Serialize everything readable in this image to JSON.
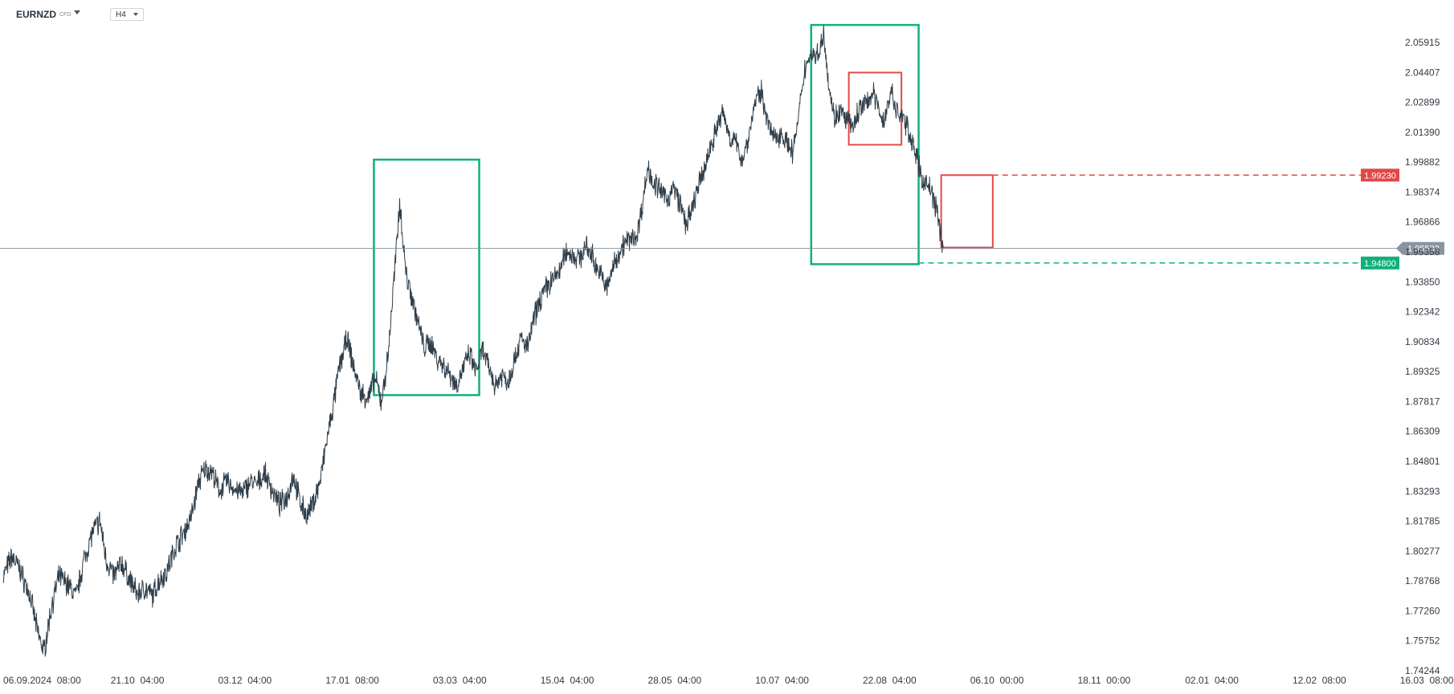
{
  "header": {
    "symbol": "EURNZD",
    "symbol_type": "CFD",
    "timeframe": "H4"
  },
  "chart_data": {
    "type": "line",
    "instrument": "EURNZD",
    "timeframe": "H4",
    "xlabel": "",
    "ylabel": "",
    "ylim": [
      1.74244,
      2.06923
    ],
    "y_ticks": [
      "2.05915",
      "2.04407",
      "2.02899",
      "2.01390",
      "1.99882",
      "1.98374",
      "1.96866",
      "1.95358",
      "1.93850",
      "1.92342",
      "1.90834",
      "1.89325",
      "1.87817",
      "1.86309",
      "1.84801",
      "1.83293",
      "1.81785",
      "1.80277",
      "1.78768",
      "1.77260",
      "1.75752",
      "1.74244"
    ],
    "x_ticks": [
      "06.09.2024  08:00",
      "21.10  04:00",
      "03.12  04:00",
      "17.01  08:00",
      "03.03  04:00",
      "15.04  04:00",
      "28.05  04:00",
      "10.07  04:00",
      "22.08  04:00",
      "06.10  00:00",
      "18.11  00:00",
      "02.01  04:00",
      "12.02  08:00",
      "16.03  08:00"
    ],
    "price_path": [
      [
        0,
        1.79
      ],
      [
        0.8,
        1.8
      ],
      [
        1.5,
        1.794
      ],
      [
        2.5,
        1.78
      ],
      [
        3.2,
        1.762
      ],
      [
        3.8,
        1.752
      ],
      [
        4.5,
        1.775
      ],
      [
        5.2,
        1.79
      ],
      [
        6,
        1.786
      ],
      [
        6.8,
        1.78
      ],
      [
        7.5,
        1.798
      ],
      [
        8.3,
        1.812
      ],
      [
        9,
        1.818
      ],
      [
        9.6,
        1.798
      ],
      [
        10.3,
        1.79
      ],
      [
        11,
        1.797
      ],
      [
        11.8,
        1.788
      ],
      [
        12.5,
        1.781
      ],
      [
        13.2,
        1.784
      ],
      [
        13.9,
        1.78
      ],
      [
        14.5,
        1.788
      ],
      [
        15.2,
        1.792
      ],
      [
        16,
        1.805
      ],
      [
        16.8,
        1.812
      ],
      [
        17.5,
        1.82
      ],
      [
        18.2,
        1.838
      ],
      [
        18.8,
        1.844
      ],
      [
        19.4,
        1.843
      ],
      [
        20.1,
        1.833
      ],
      [
        20.8,
        1.838
      ],
      [
        21.5,
        1.834
      ],
      [
        22.3,
        1.832
      ],
      [
        23,
        1.838
      ],
      [
        23.6,
        1.836
      ],
      [
        24.3,
        1.842
      ],
      [
        25,
        1.834
      ],
      [
        25.7,
        1.826
      ],
      [
        26.4,
        1.83
      ],
      [
        27,
        1.841
      ],
      [
        27.6,
        1.828
      ],
      [
        28.3,
        1.82
      ],
      [
        28.9,
        1.828
      ],
      [
        29.5,
        1.838
      ],
      [
        30.1,
        1.858
      ],
      [
        30.7,
        1.875
      ],
      [
        31.3,
        1.896
      ],
      [
        32,
        1.91
      ],
      [
        32.6,
        1.896
      ],
      [
        33.3,
        1.882
      ],
      [
        34,
        1.88
      ],
      [
        34.6,
        1.89
      ],
      [
        35.2,
        1.878
      ],
      [
        35.8,
        1.9
      ],
      [
        36.3,
        1.935
      ],
      [
        36.6,
        1.955
      ],
      [
        36.9,
        1.98
      ],
      [
        37.2,
        1.96
      ],
      [
        37.5,
        1.942
      ],
      [
        38,
        1.932
      ],
      [
        38.6,
        1.918
      ],
      [
        39.2,
        1.905
      ],
      [
        39.8,
        1.908
      ],
      [
        40.4,
        1.9
      ],
      [
        41,
        1.896
      ],
      [
        41.6,
        1.892
      ],
      [
        42.2,
        1.886
      ],
      [
        42.8,
        1.895
      ],
      [
        43.4,
        1.902
      ],
      [
        44,
        1.893
      ],
      [
        44.6,
        1.904
      ],
      [
        45.2,
        1.895
      ],
      [
        45.8,
        1.886
      ],
      [
        46.4,
        1.892
      ],
      [
        47,
        1.888
      ],
      [
        47.6,
        1.9
      ],
      [
        48.2,
        1.91
      ],
      [
        48.8,
        1.905
      ],
      [
        49.4,
        1.92
      ],
      [
        50,
        1.93
      ],
      [
        50.6,
        1.936
      ],
      [
        51.2,
        1.94
      ],
      [
        51.8,
        1.944
      ],
      [
        52.4,
        1.954
      ],
      [
        53,
        1.952
      ],
      [
        53.6,
        1.95
      ],
      [
        54.2,
        1.956
      ],
      [
        54.8,
        1.952
      ],
      [
        55.3,
        1.945
      ],
      [
        55.8,
        1.94
      ],
      [
        56.2,
        1.935
      ],
      [
        56.7,
        1.945
      ],
      [
        57.2,
        1.952
      ],
      [
        57.8,
        1.958
      ],
      [
        58.4,
        1.96
      ],
      [
        59,
        1.962
      ],
      [
        59.5,
        1.978
      ],
      [
        60,
        1.996
      ],
      [
        60.6,
        1.988
      ],
      [
        61.2,
        1.984
      ],
      [
        61.8,
        1.98
      ],
      [
        62.4,
        1.986
      ],
      [
        63,
        1.978
      ],
      [
        63.5,
        1.968
      ],
      [
        64,
        1.972
      ],
      [
        64.6,
        1.985
      ],
      [
        65.2,
        1.994
      ],
      [
        65.8,
        2.006
      ],
      [
        66.4,
        2.016
      ],
      [
        67,
        2.024
      ],
      [
        67.6,
        2.012
      ],
      [
        68.2,
        2.008
      ],
      [
        68.8,
        2.0
      ],
      [
        69.4,
        2.012
      ],
      [
        70,
        2.03
      ],
      [
        70.6,
        2.034
      ],
      [
        71.2,
        2.018
      ],
      [
        71.8,
        2.01
      ],
      [
        72.4,
        2.014
      ],
      [
        73,
        2.008
      ],
      [
        73.5,
        2.004
      ],
      [
        74,
        2.02
      ],
      [
        74.6,
        2.046
      ],
      [
        75.2,
        2.054
      ],
      [
        75.7,
        2.052
      ],
      [
        76.1,
        2.058
      ],
      [
        76.4,
        2.064
      ],
      [
        76.8,
        2.04
      ],
      [
        77.3,
        2.022
      ],
      [
        77.9,
        2.024
      ],
      [
        78.5,
        2.02
      ],
      [
        79.1,
        2.016
      ],
      [
        79.7,
        2.026
      ],
      [
        80.3,
        2.028
      ],
      [
        80.9,
        2.034
      ],
      [
        81.5,
        2.026
      ],
      [
        82,
        2.018
      ],
      [
        82.6,
        2.036
      ],
      [
        83.1,
        2.024
      ],
      [
        83.7,
        2.022
      ],
      [
        84.3,
        2.014
      ],
      [
        84.9,
        2.004
      ],
      [
        85.5,
        1.99
      ],
      [
        86,
        1.988
      ],
      [
        86.4,
        1.984
      ],
      [
        86.8,
        1.976
      ],
      [
        87.1,
        1.968
      ],
      [
        87.3,
        1.962
      ],
      [
        87.5,
        1.955
      ]
    ],
    "annotations": [
      {
        "type": "rectangle",
        "color": "#10b07a",
        "x": [
          34.5,
          44.3
        ],
        "y": [
          1.8814,
          2.0001
        ]
      },
      {
        "type": "rectangle",
        "color": "#10b07a",
        "x": [
          75.2,
          85.2
        ],
        "y": [
          1.9474,
          2.068
        ]
      },
      {
        "type": "rectangle",
        "color": "#e34848",
        "x": [
          78.7,
          83.6
        ],
        "y": [
          2.0076,
          2.044
        ]
      },
      {
        "type": "rectangle",
        "color": "#e34848",
        "x": [
          87.3,
          92.1
        ],
        "y": [
          1.9558,
          1.9923
        ]
      }
    ],
    "levels": [
      {
        "name": "resistance",
        "value": "1.99230",
        "color": "#e34848",
        "style": "dashed"
      },
      {
        "name": "current_price",
        "value": "1.95533",
        "color": "#8a949e",
        "style": "solid"
      },
      {
        "name": "support",
        "value": "1.94800",
        "color": "#10b07a",
        "style": "dashed"
      }
    ],
    "grid": false
  }
}
